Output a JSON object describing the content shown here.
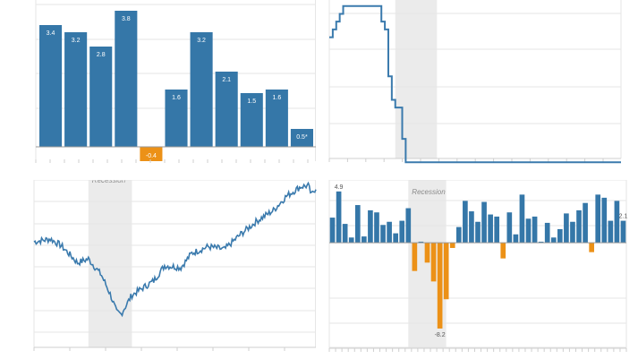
{
  "colors": {
    "bar": "#3577a8",
    "negative": "#ec9117",
    "line": "#3a7aad",
    "grid": "#e6e6e6",
    "axis": "#cfcfcf",
    "shade": "#ebebeb",
    "label_light": "#ffffff",
    "label_dark": "#555555",
    "shade_text": "#8a8a8a"
  },
  "chart_data": [
    {
      "type": "bar",
      "title": "",
      "values": [
        3.4,
        3.2,
        2.8,
        3.8,
        -0.4,
        1.6,
        3.2,
        2.1,
        1.5,
        1.6,
        0.5
      ],
      "labels": [
        "3.4",
        "3.2",
        "2.8",
        "3.8",
        "-0.4",
        "1.6",
        "3.2",
        "2.1",
        "1.5",
        "1.6",
        "0.5*"
      ],
      "ylim": [
        -0.6,
        4.0
      ],
      "grid": true,
      "legend": "none"
    },
    {
      "type": "line",
      "title": "",
      "step": true,
      "x": [
        0,
        1,
        2,
        3,
        4,
        5,
        6,
        7,
        8,
        9,
        10,
        11,
        12,
        13,
        14,
        15,
        16,
        17,
        18,
        19,
        20,
        21,
        22,
        23,
        24,
        25,
        26,
        27,
        28,
        29,
        30,
        31,
        32,
        33,
        34,
        35,
        36,
        37,
        38,
        39,
        40,
        41,
        42,
        43,
        44,
        45,
        46,
        47,
        48,
        49,
        50,
        51,
        52,
        53,
        54,
        55,
        56,
        57,
        58,
        59,
        60,
        61,
        62,
        63,
        64,
        65,
        66,
        67,
        68,
        69,
        70,
        71,
        72,
        73,
        74,
        75,
        76,
        77,
        78,
        79,
        80,
        81,
        82,
        83,
        84
      ],
      "y": [
        4.25,
        4.5,
        4.75,
        5.0,
        5.25,
        5.25,
        5.25,
        5.25,
        5.25,
        5.25,
        5.25,
        5.25,
        5.25,
        5.25,
        5.25,
        4.75,
        4.5,
        3.0,
        2.25,
        2.0,
        2.0,
        1.0,
        0.25,
        0.25,
        0.25,
        0.25,
        0.25,
        0.25,
        0.25,
        0.25,
        0.25,
        0.25,
        0.25,
        0.25,
        0.25,
        0.25,
        0.25,
        0.25,
        0.25,
        0.25,
        0.25,
        0.25,
        0.25,
        0.25,
        0.25,
        0.25,
        0.25,
        0.25,
        0.25,
        0.25,
        0.25,
        0.25,
        0.25,
        0.25,
        0.25,
        0.25,
        0.25,
        0.25,
        0.25,
        0.25,
        0.25,
        0.25,
        0.25,
        0.25,
        0.25,
        0.25,
        0.25,
        0.25,
        0.25,
        0.25,
        0.25,
        0.25,
        0.25,
        0.25,
        0.25,
        0.25,
        0.25,
        0.25,
        0.25,
        0.25,
        0.25,
        0.25,
        0.25,
        0.25,
        0.25
      ],
      "xlim": [
        0,
        84
      ],
      "ylim": [
        0,
        5.5
      ],
      "shaded": [
        19,
        31
      ],
      "grid": true,
      "legend": "none"
    },
    {
      "type": "line",
      "title": "",
      "annotation": "Recession",
      "points": 260,
      "start": 1500,
      "keypoints": [
        [
          0,
          1500
        ],
        [
          15,
          1530
        ],
        [
          25,
          1460
        ],
        [
          40,
          1280
        ],
        [
          50,
          1320
        ],
        [
          62,
          1150
        ],
        [
          70,
          950
        ],
        [
          76,
          760
        ],
        [
          80,
          740
        ],
        [
          90,
          940
        ],
        [
          110,
          1090
        ],
        [
          120,
          1250
        ],
        [
          135,
          1230
        ],
        [
          145,
          1380
        ],
        [
          160,
          1450
        ],
        [
          175,
          1420
        ],
        [
          190,
          1580
        ],
        [
          205,
          1720
        ],
        [
          220,
          1830
        ],
        [
          232,
          1980
        ],
        [
          245,
          2080
        ],
        [
          252,
          2090
        ],
        [
          255,
          1990
        ],
        [
          259,
          2070
        ]
      ],
      "xlim": [
        0,
        259
      ],
      "ylim": [
        400,
        2150
      ],
      "shaded": [
        50,
        90
      ],
      "grid": true,
      "legend": "none"
    },
    {
      "type": "bar",
      "title": "",
      "annotation": "Recession",
      "values": [
        2.4,
        4.9,
        1.8,
        0.5,
        3.6,
        0.6,
        3.1,
        2.9,
        1.7,
        2.0,
        0.9,
        2.1,
        3.3,
        -2.7,
        0.1,
        -1.9,
        -3.7,
        -8.2,
        -5.4,
        -0.5,
        1.5,
        4.0,
        3.0,
        2.0,
        3.9,
        2.7,
        2.5,
        -1.5,
        2.9,
        0.8,
        4.6,
        2.3,
        2.5,
        0.1,
        1.9,
        0.5,
        1.3,
        2.8,
        2.0,
        3.1,
        3.8,
        -0.9,
        4.6,
        4.3,
        2.1,
        4.0,
        2.1
      ],
      "labels": {
        "1": "4.9",
        "17": "-8.2",
        "46": "2.1"
      },
      "ylim": [
        -10.0,
        6.0
      ],
      "shaded": [
        12.5,
        18.5
      ],
      "grid": true,
      "legend": "none"
    }
  ]
}
